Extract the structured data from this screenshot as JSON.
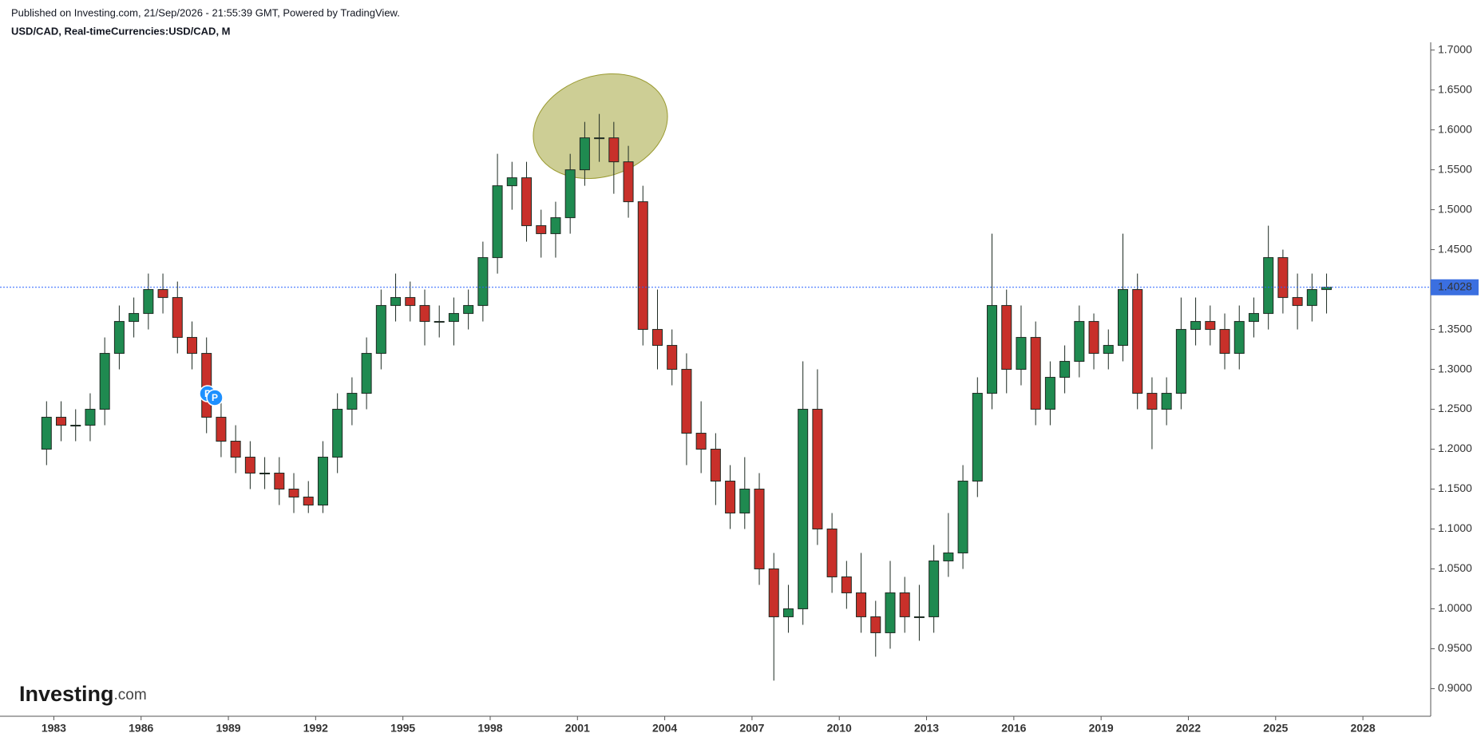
{
  "header": {
    "published": "Published on Investing.com, 21/Sep/2026 - 21:55:39 GMT, Powered by TradingView.",
    "symbol": "USD/CAD, Real-timeCurrencies:USD/CAD, M"
  },
  "logo": {
    "brand": "Investing",
    "suffix": ".com"
  },
  "chart_data": {
    "type": "candlestick",
    "x": [
      1982.75,
      1983.25,
      1983.75,
      1984.25,
      1984.75,
      1985.25,
      1985.75,
      1986.25,
      1986.75,
      1987.25,
      1987.75,
      1988.25,
      1988.75,
      1989.25,
      1989.75,
      1990.25,
      1990.75,
      1991.25,
      1991.75,
      1992.25,
      1992.75,
      1993.25,
      1993.75,
      1994.25,
      1994.75,
      1995.25,
      1995.75,
      1996.25,
      1996.75,
      1997.25,
      1997.75,
      1998.25,
      1998.75,
      1999.25,
      1999.75,
      2000.25,
      2000.75,
      2001.25,
      2001.75,
      2002.25,
      2002.75,
      2003.25,
      2003.75,
      2004.25,
      2004.75,
      2005.25,
      2005.75,
      2006.25,
      2006.75,
      2007.25,
      2007.75,
      2008.25,
      2008.75,
      2009.25,
      2009.75,
      2010.25,
      2010.75,
      2011.25,
      2011.75,
      2012.25,
      2012.75,
      2013.25,
      2013.75,
      2014.25,
      2014.75,
      2015.25,
      2015.75,
      2016.25,
      2016.75,
      2017.25,
      2017.75,
      2018.25,
      2018.75,
      2019.25,
      2019.75,
      2020.25,
      2020.75,
      2021.25,
      2021.75,
      2022.25,
      2022.75,
      2023.25,
      2023.75,
      2024.25,
      2024.75,
      2025.25,
      2025.75,
      2026.25,
      2026.75
    ],
    "open": [
      1.2,
      1.24,
      1.23,
      1.23,
      1.25,
      1.32,
      1.36,
      1.37,
      1.4,
      1.39,
      1.34,
      1.32,
      1.24,
      1.21,
      1.19,
      1.17,
      1.17,
      1.15,
      1.14,
      1.13,
      1.19,
      1.25,
      1.27,
      1.32,
      1.38,
      1.39,
      1.38,
      1.36,
      1.36,
      1.37,
      1.38,
      1.44,
      1.53,
      1.54,
      1.48,
      1.47,
      1.49,
      1.55,
      1.59,
      1.59,
      1.56,
      1.51,
      1.35,
      1.33,
      1.3,
      1.22,
      1.2,
      1.16,
      1.12,
      1.15,
      1.05,
      0.99,
      1.0,
      1.25,
      1.1,
      1.04,
      1.02,
      0.99,
      0.97,
      1.02,
      0.99,
      0.99,
      1.06,
      1.07,
      1.16,
      1.27,
      1.38,
      1.3,
      1.34,
      1.25,
      1.29,
      1.31,
      1.36,
      1.32,
      1.33,
      1.4,
      1.27,
      1.25,
      1.27,
      1.35,
      1.36,
      1.35,
      1.32,
      1.36,
      1.37,
      1.44,
      1.39,
      1.38,
      1.4
    ],
    "high": [
      1.26,
      1.26,
      1.25,
      1.27,
      1.34,
      1.38,
      1.39,
      1.42,
      1.42,
      1.41,
      1.36,
      1.34,
      1.26,
      1.23,
      1.21,
      1.19,
      1.19,
      1.17,
      1.16,
      1.21,
      1.27,
      1.29,
      1.34,
      1.4,
      1.42,
      1.41,
      1.4,
      1.38,
      1.39,
      1.4,
      1.46,
      1.57,
      1.56,
      1.56,
      1.5,
      1.51,
      1.57,
      1.61,
      1.62,
      1.61,
      1.58,
      1.53,
      1.4,
      1.35,
      1.32,
      1.26,
      1.22,
      1.18,
      1.19,
      1.17,
      1.07,
      1.03,
      1.31,
      1.3,
      1.12,
      1.06,
      1.07,
      1.01,
      1.06,
      1.04,
      1.03,
      1.08,
      1.12,
      1.18,
      1.29,
      1.47,
      1.4,
      1.38,
      1.36,
      1.31,
      1.33,
      1.38,
      1.37,
      1.35,
      1.47,
      1.42,
      1.29,
      1.29,
      1.39,
      1.39,
      1.38,
      1.37,
      1.38,
      1.39,
      1.48,
      1.45,
      1.42,
      1.42,
      1.42
    ],
    "low": [
      1.18,
      1.21,
      1.21,
      1.21,
      1.23,
      1.3,
      1.34,
      1.35,
      1.37,
      1.32,
      1.3,
      1.22,
      1.19,
      1.17,
      1.15,
      1.15,
      1.13,
      1.12,
      1.12,
      1.12,
      1.17,
      1.23,
      1.25,
      1.3,
      1.36,
      1.36,
      1.33,
      1.34,
      1.33,
      1.35,
      1.36,
      1.42,
      1.5,
      1.46,
      1.44,
      1.44,
      1.47,
      1.53,
      1.56,
      1.52,
      1.49,
      1.33,
      1.3,
      1.28,
      1.18,
      1.17,
      1.13,
      1.1,
      1.1,
      1.03,
      0.91,
      0.97,
      0.98,
      1.08,
      1.02,
      1.0,
      0.97,
      0.94,
      0.95,
      0.97,
      0.96,
      0.97,
      1.04,
      1.05,
      1.14,
      1.25,
      1.27,
      1.28,
      1.23,
      1.23,
      1.27,
      1.29,
      1.3,
      1.3,
      1.31,
      1.25,
      1.2,
      1.23,
      1.25,
      1.33,
      1.33,
      1.3,
      1.3,
      1.34,
      1.35,
      1.37,
      1.35,
      1.36,
      1.37
    ],
    "close": [
      1.24,
      1.23,
      1.23,
      1.25,
      1.32,
      1.36,
      1.37,
      1.4,
      1.39,
      1.34,
      1.32,
      1.24,
      1.21,
      1.19,
      1.17,
      1.17,
      1.15,
      1.14,
      1.13,
      1.19,
      1.25,
      1.27,
      1.32,
      1.38,
      1.39,
      1.38,
      1.36,
      1.36,
      1.37,
      1.38,
      1.44,
      1.53,
      1.54,
      1.48,
      1.47,
      1.49,
      1.55,
      1.59,
      1.59,
      1.56,
      1.51,
      1.35,
      1.33,
      1.3,
      1.22,
      1.2,
      1.16,
      1.12,
      1.15,
      1.05,
      0.99,
      1.0,
      1.25,
      1.1,
      1.04,
      1.02,
      0.99,
      0.97,
      1.02,
      0.99,
      0.99,
      1.06,
      1.07,
      1.16,
      1.27,
      1.38,
      1.3,
      1.34,
      1.25,
      1.29,
      1.31,
      1.36,
      1.32,
      1.33,
      1.4,
      1.27,
      1.25,
      1.27,
      1.35,
      1.36,
      1.35,
      1.32,
      1.36,
      1.37,
      1.44,
      1.39,
      1.38,
      1.4,
      1.4028
    ],
    "up_color": "#1f8a50",
    "down_color": "#c8302a",
    "last_price": 1.4028,
    "last_price_color": "#2962ff",
    "markers": [
      "P",
      "P"
    ],
    "xlim": [
      1981.15,
      2030.33
    ],
    "xticks": [
      1983,
      1986,
      1989,
      1992,
      1995,
      1998,
      2001,
      2004,
      2007,
      2010,
      2013,
      2016,
      2019,
      2022,
      2025,
      2028
    ],
    "ylim": [
      0.8654,
      1.7097
    ],
    "yticks": [
      {
        "value": 0.9,
        "label": "0.9000"
      },
      {
        "value": 0.95,
        "label": "0.9500"
      },
      {
        "value": 1.0,
        "label": "1.0000"
      },
      {
        "value": 1.05,
        "label": "1.0500"
      },
      {
        "value": 1.1,
        "label": "1.1000"
      },
      {
        "value": 1.15,
        "label": "1.1500"
      },
      {
        "value": 1.2,
        "label": "1.2000"
      },
      {
        "value": 1.25,
        "label": "1.2500"
      },
      {
        "value": 1.3,
        "label": "1.3000"
      },
      {
        "value": 1.35,
        "label": "1.3500"
      },
      {
        "value": 1.4,
        "label": "1.4000"
      },
      {
        "value": 1.45,
        "label": "1.4500"
      },
      {
        "value": 1.5,
        "label": "1.5000"
      },
      {
        "value": 1.55,
        "label": "1.5500"
      },
      {
        "value": 1.6,
        "label": "1.6000"
      },
      {
        "value": 1.65,
        "label": "1.6500"
      },
      {
        "value": 1.7,
        "label": "1.7000"
      }
    ]
  }
}
